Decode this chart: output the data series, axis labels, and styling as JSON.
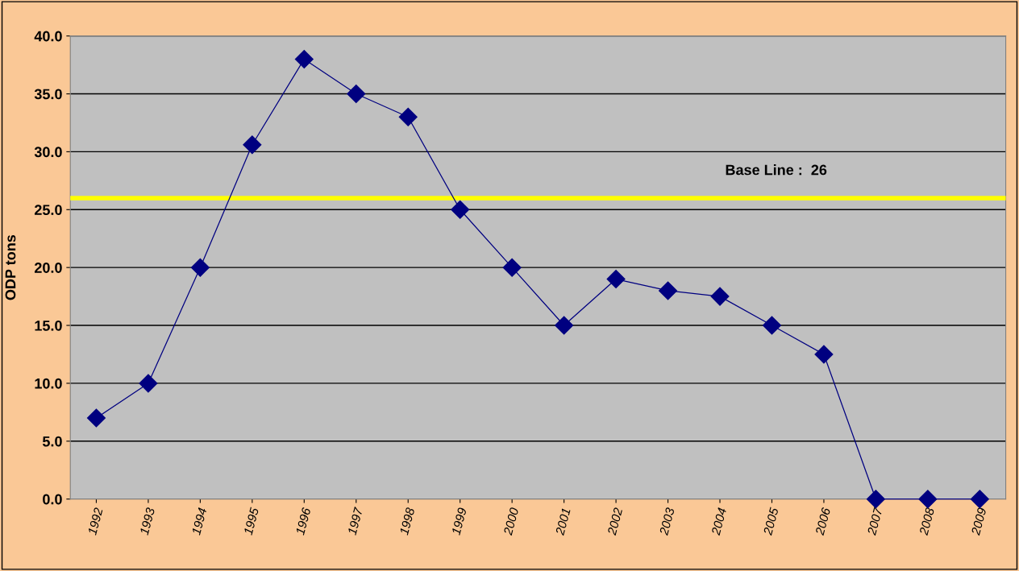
{
  "chart_data": {
    "type": "line",
    "ylabel": "ODP tons",
    "categories": [
      "1992",
      "1993",
      "1994",
      "1995",
      "1996",
      "1997",
      "1998",
      "1999",
      "2000",
      "2001",
      "2002",
      "2003",
      "2004",
      "2005",
      "2006",
      "2007",
      "2008",
      "2009"
    ],
    "series": [
      {
        "color": "#000080",
        "values": [
          7.0,
          10.0,
          20.0,
          30.6,
          38.0,
          35.0,
          33.0,
          25.0,
          20.0,
          15.0,
          19.0,
          18.0,
          17.5,
          15.0,
          12.5,
          0.0,
          0.0,
          0.0
        ]
      }
    ],
    "ylim": [
      0,
      40
    ],
    "yticks": [
      {
        "value": 0,
        "label": "0.0"
      },
      {
        "value": 5,
        "label": "5.0"
      },
      {
        "value": 10,
        "label": "10.0"
      },
      {
        "value": 15,
        "label": "15.0"
      },
      {
        "value": 20,
        "label": "20.0"
      },
      {
        "value": 25,
        "label": "25.0"
      },
      {
        "value": 30,
        "label": "30.0"
      },
      {
        "value": 35,
        "label": "35.0"
      },
      {
        "value": 40,
        "label": "40.0"
      }
    ],
    "ref_lines": [
      {
        "axis": "y",
        "value": 26,
        "label": "Base Line :  26",
        "color": "#ffff00"
      }
    ],
    "grid": "y",
    "legend": false,
    "marker": "diamond",
    "line_style": "solid"
  }
}
